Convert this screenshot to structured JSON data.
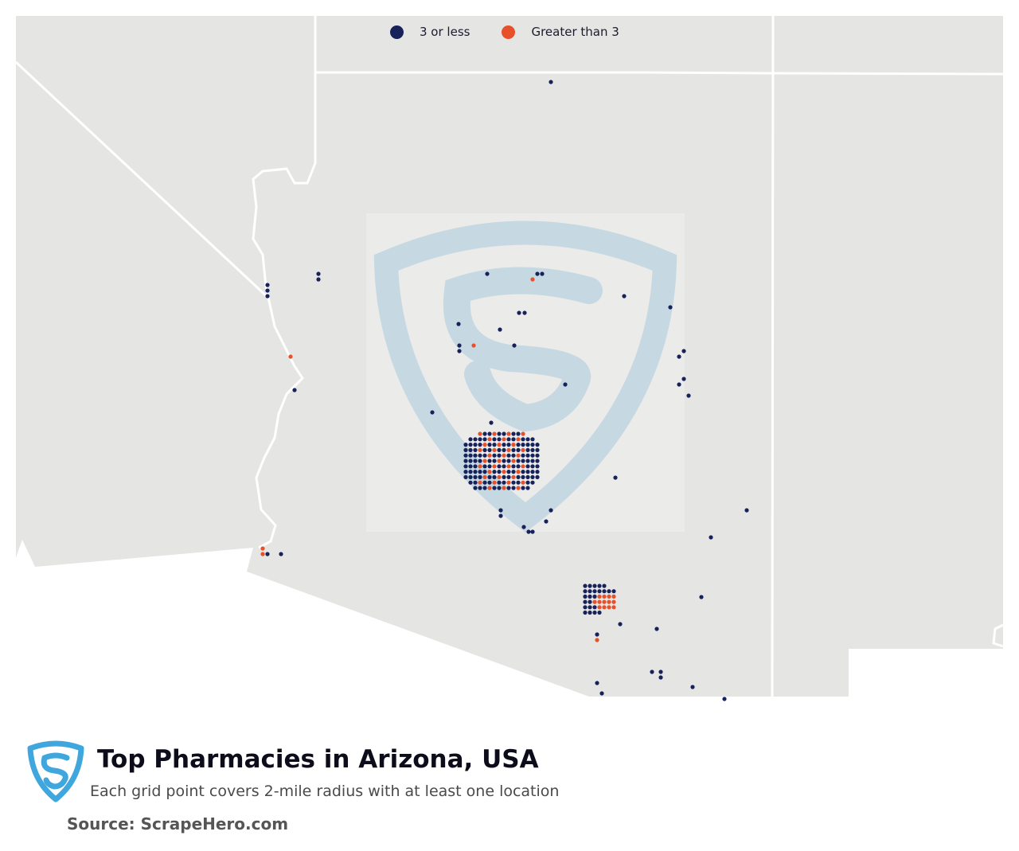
{
  "legend": {
    "items": [
      {
        "label": "3 or less",
        "color": "#17215a"
      },
      {
        "label": "Greater than 3",
        "color": "#e8502a"
      }
    ]
  },
  "title": "Top Pharmacies in Arizona, USA",
  "subtitle": "Each grid point covers 2-mile radius with at least one location",
  "source": "Source: ScrapeHero.com",
  "colors": {
    "low": "#17215a",
    "high": "#e8502a",
    "land": "#e5e5e3",
    "border": "#ffffff",
    "brand": "#3fa7dd"
  },
  "icons": [
    "scrapehero-logo-icon",
    "scrapehero-watermark-icon"
  ]
}
